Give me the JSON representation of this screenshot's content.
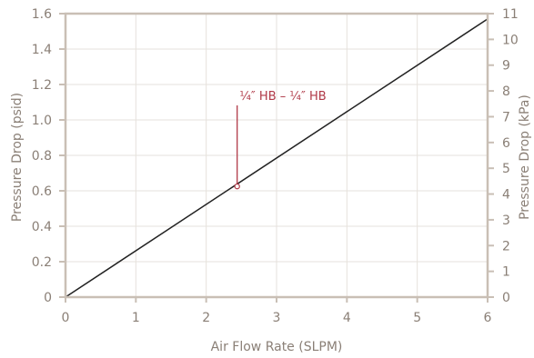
{
  "chart_data": {
    "type": "line",
    "xlabel": "Air Flow Rate (SLPM)",
    "ylabel_left": "Pressure Drop (psid)",
    "ylabel_right": "Pressure Drop (kPa)",
    "xlim": [
      0,
      6
    ],
    "ylim_left": [
      0,
      1.6
    ],
    "ylim_right": [
      0,
      11
    ],
    "x_ticks": [
      "0",
      "1",
      "2",
      "3",
      "4",
      "5",
      "6"
    ],
    "y_ticks_left": [
      "0",
      "0.2",
      "0.4",
      "0.6",
      "0.8",
      "1.0",
      "1.2",
      "1.4",
      "1.6"
    ],
    "y_ticks_right": [
      "0",
      "1",
      "2",
      "3",
      "4",
      "5",
      "6",
      "7",
      "8",
      "9",
      "10",
      "11"
    ],
    "grid": true,
    "series": [
      {
        "name": "¼″ HB – ¼″ HB",
        "x": [
          0,
          6
        ],
        "y": [
          0,
          1.57
        ]
      }
    ],
    "annotation": {
      "text": "¼″ HB – ¼″ HB",
      "x": 2.44,
      "y": 0.625
    }
  },
  "colors": {
    "axis": "#c9bfb5",
    "grid": "#e6e1dc",
    "tick_text": "#8a7f76",
    "line": "#222222",
    "annotation": "#b03a48"
  }
}
